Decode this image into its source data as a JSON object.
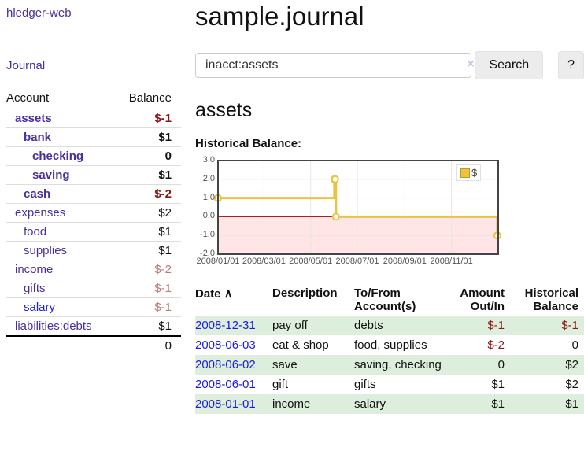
{
  "app": {
    "brand": "hledger-web"
  },
  "theme": {
    "link_purple": "#4a3199",
    "link_blue": "#1b1be1",
    "negative_strong": "#8c1616",
    "negative_soft": "#bf7979",
    "row_green": "#ddeedd",
    "series_gold": "#edc240"
  },
  "sidebar": {
    "journal_link": "Journal",
    "headers": {
      "account": "Account",
      "balance": "Balance"
    },
    "rows": [
      {
        "label": "assets",
        "balance": "$-1",
        "depth": 1,
        "bold": true,
        "balance_class": "neg-strong",
        "label_class": ""
      },
      {
        "label": "bank",
        "balance": "$1",
        "depth": 2,
        "bold": true,
        "balance_class": "",
        "label_class": ""
      },
      {
        "label": "checking",
        "balance": "0",
        "depth": 3,
        "bold": true,
        "balance_class": "",
        "label_class": ""
      },
      {
        "label": "saving",
        "balance": "$1",
        "depth": 3,
        "bold": true,
        "balance_class": "",
        "label_class": ""
      },
      {
        "label": "cash",
        "balance": "$-2",
        "depth": 2,
        "bold": true,
        "balance_class": "neg-strong",
        "label_class": ""
      },
      {
        "label": "expenses",
        "balance": "$2",
        "depth": 1,
        "bold": false,
        "balance_class": "",
        "label_class": ""
      },
      {
        "label": "food",
        "balance": "$1",
        "depth": 2,
        "bold": false,
        "balance_class": "",
        "label_class": ""
      },
      {
        "label": "supplies",
        "balance": "$1",
        "depth": 2,
        "bold": false,
        "balance_class": "",
        "label_class": ""
      },
      {
        "label": "income",
        "balance": "$-2",
        "depth": 1,
        "bold": false,
        "balance_class": "neg-soft",
        "label_class": ""
      },
      {
        "label": "gifts",
        "balance": "$-1",
        "depth": 2,
        "bold": false,
        "balance_class": "neg-soft",
        "label_class": ""
      },
      {
        "label": "salary",
        "balance": "$-1",
        "depth": 2,
        "bold": false,
        "balance_class": "neg-soft",
        "label_class": "visited"
      },
      {
        "label": "liabilities:debts",
        "balance": "$1",
        "depth": 1,
        "bold": false,
        "balance_class": "",
        "label_class": ""
      }
    ],
    "total": "0"
  },
  "main": {
    "title": "sample.journal",
    "search": {
      "value": "inacct:assets",
      "clear_icon": "×",
      "button_label": "Search",
      "help_label": "?"
    },
    "account_heading": "assets",
    "chart_heading": "Historical Balance:"
  },
  "chart_data": {
    "type": "line",
    "title": "Historical Balance:",
    "step": true,
    "series": [
      {
        "name": "$",
        "color": "#edc240",
        "points": [
          {
            "date": "2008/01/01",
            "value": 1
          },
          {
            "date": "2008/06/01",
            "value": 2
          },
          {
            "date": "2008/06/02",
            "value": 2
          },
          {
            "date": "2008/06/03",
            "value": 0
          },
          {
            "date": "2008/12/31",
            "value": -1
          }
        ]
      }
    ],
    "x_ticks": [
      "2008/01/01",
      "2008/03/01",
      "2008/05/01",
      "2008/07/01",
      "2008/09/01",
      "2008/11/01"
    ],
    "y_ticks": [
      3.0,
      2.0,
      1.0,
      0.0,
      -1.0,
      -2.0
    ],
    "ylim": [
      -2,
      3
    ],
    "xlim": [
      "2008/01/01",
      "2009/01/01"
    ],
    "grid": true,
    "legend_position": "top-right",
    "negative_region_color": "#ffe5e5",
    "zero_line_color": "#a80000",
    "plot_border_color": "#444444",
    "grid_color": "#e6e6e6",
    "axis_text_color": "#545454"
  },
  "register": {
    "headers": {
      "date": "Date",
      "sort_indicator": "∧",
      "description": "Description",
      "accounts": "To/From Account(s)",
      "amount": "Amount Out/In",
      "balance": "Historical Balance"
    },
    "rows": [
      {
        "date": "2008-12-31",
        "description": "pay off",
        "accounts": "debts",
        "amount": "$-1",
        "amount_class": "neg-strong",
        "balance": "$-1",
        "balance_class": "neg-strong"
      },
      {
        "date": "2008-06-03",
        "description": "eat & shop",
        "accounts": "food, supplies",
        "amount": "$-2",
        "amount_class": "neg-strong",
        "balance": "0",
        "balance_class": ""
      },
      {
        "date": "2008-06-02",
        "description": "save",
        "accounts": "saving, checking",
        "amount": "0",
        "amount_class": "",
        "balance": "$2",
        "balance_class": ""
      },
      {
        "date": "2008-06-01",
        "description": "gift",
        "accounts": "gifts",
        "amount": "$1",
        "amount_class": "",
        "balance": "$2",
        "balance_class": ""
      },
      {
        "date": "2008-01-01",
        "description": "income",
        "accounts": "salary",
        "amount": "$1",
        "amount_class": "",
        "balance": "$1",
        "balance_class": ""
      }
    ]
  }
}
